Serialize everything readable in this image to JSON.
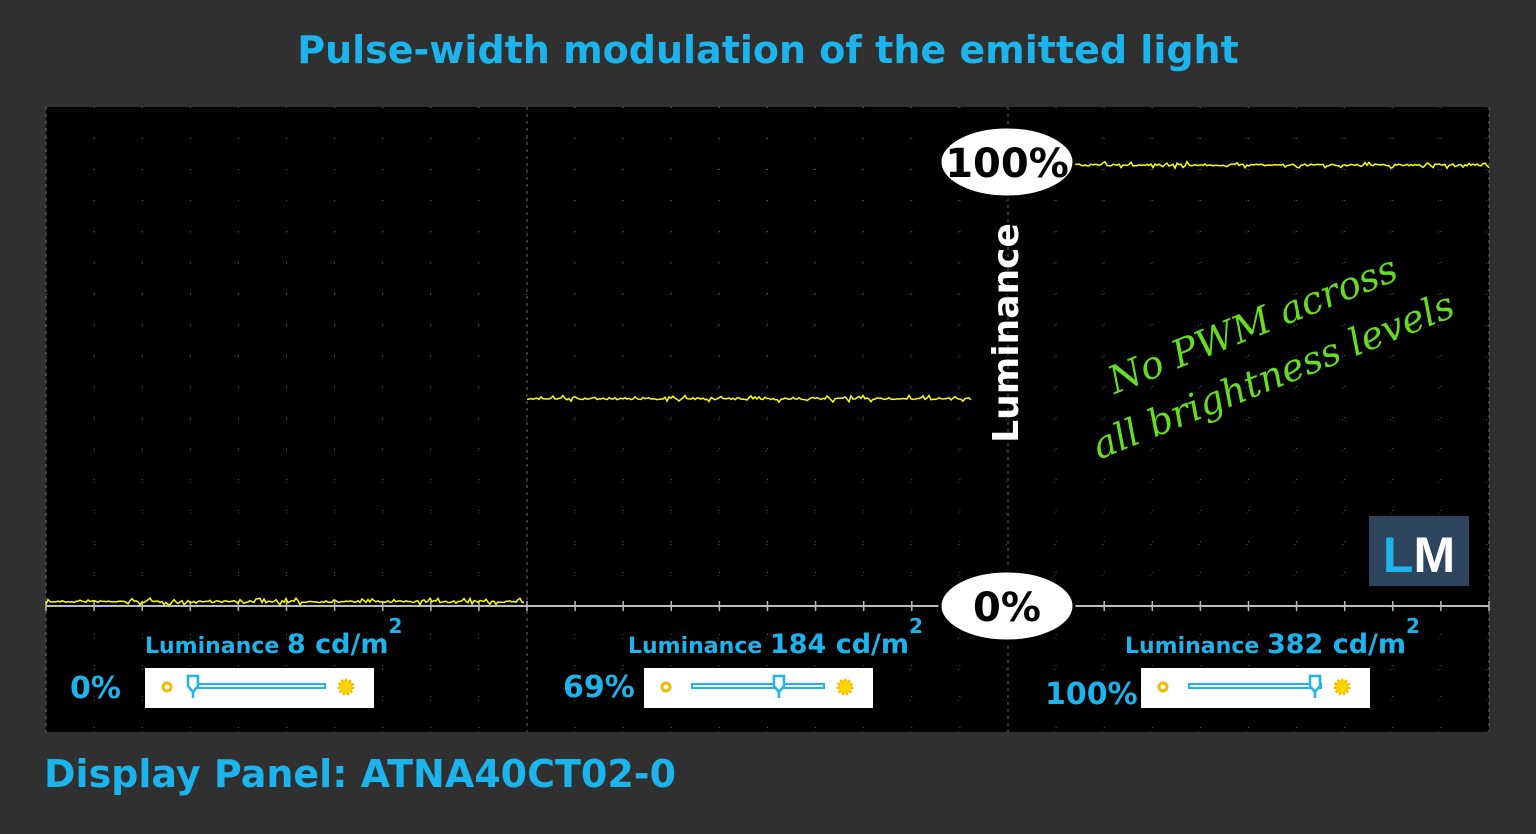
{
  "title": "Pulse-width modulation of the emitted light",
  "footer": "Display Panel: ATNA40CT02-0",
  "colors": {
    "accent": "#1cb4ec",
    "trace": "#ffff00",
    "annotation": "#66dd22",
    "logo_bg": "#2e4560"
  },
  "chart_data": {
    "type": "line",
    "title": "Pulse-width modulation of the emitted light",
    "ylabel": "Luminance",
    "y_ticks": [
      "0%",
      "100%"
    ],
    "ylim": [
      0,
      100
    ],
    "grid": true,
    "annotation": [
      "No PWM across",
      "all brightness levels"
    ],
    "series": [
      {
        "brightness": "0%",
        "luminance_label": "Luminance",
        "luminance_value": "8 cd/m",
        "unit_sup": "2",
        "level_percent": 1,
        "slider_fraction": 0.0
      },
      {
        "brightness": "69%",
        "luminance_label": "Luminance",
        "luminance_value": "184 cd/m",
        "unit_sup": "2",
        "level_percent": 47,
        "slider_fraction": 0.69
      },
      {
        "brightness": "100%",
        "luminance_label": "Luminance",
        "luminance_value": "382 cd/m",
        "unit_sup": "2",
        "level_percent": 100,
        "slider_fraction": 1.0
      }
    ]
  },
  "logo": "LM"
}
